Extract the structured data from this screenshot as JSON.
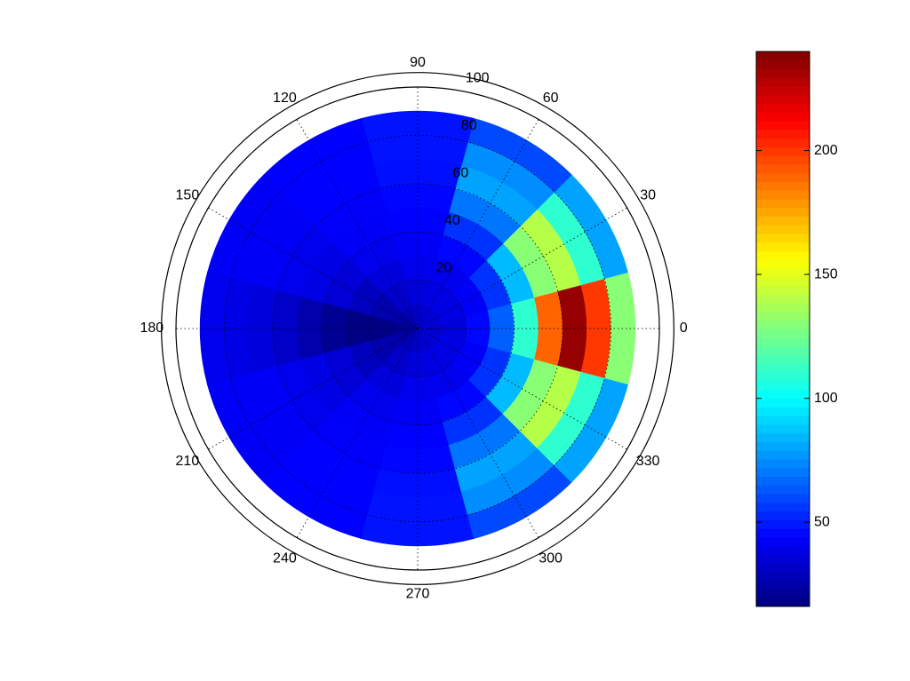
{
  "chart_data": {
    "type": "polar-contour",
    "colormap": "jet",
    "theta": [
      0,
      30,
      60,
      90,
      120,
      150,
      180,
      210,
      240,
      270,
      300,
      330
    ],
    "r": [
      5,
      15,
      25,
      35,
      45,
      55,
      65,
      75,
      85
    ],
    "values": [
      [
        32,
        36,
        45,
        65,
        110,
        190,
        235,
        200,
        130
      ],
      [
        35,
        38,
        42,
        55,
        85,
        130,
        140,
        110,
        80
      ],
      [
        35,
        38,
        40,
        45,
        55,
        70,
        80,
        75,
        60
      ],
      [
        32,
        36,
        40,
        42,
        44,
        45,
        47,
        48,
        48
      ],
      [
        28,
        32,
        36,
        40,
        42,
        43,
        44,
        44,
        44
      ],
      [
        24,
        26,
        30,
        35,
        38,
        40,
        42,
        42,
        42
      ],
      [
        20,
        17,
        17,
        20,
        26,
        32,
        36,
        38,
        40
      ],
      [
        24,
        26,
        30,
        35,
        38,
        40,
        42,
        42,
        42
      ],
      [
        28,
        32,
        36,
        40,
        42,
        43,
        44,
        44,
        44
      ],
      [
        32,
        36,
        40,
        42,
        44,
        45,
        47,
        48,
        48
      ],
      [
        35,
        38,
        40,
        45,
        55,
        70,
        80,
        75,
        60
      ],
      [
        35,
        38,
        42,
        55,
        85,
        130,
        140,
        110,
        80
      ]
    ],
    "rlim": [
      0,
      100
    ],
    "rticks": [
      20,
      40,
      60,
      80,
      100
    ],
    "thetaticks": [
      0,
      30,
      60,
      90,
      120,
      150,
      180,
      210,
      240,
      270,
      300,
      330
    ],
    "clim": [
      16,
      240
    ],
    "cticks": [
      50,
      100,
      150,
      200
    ]
  }
}
